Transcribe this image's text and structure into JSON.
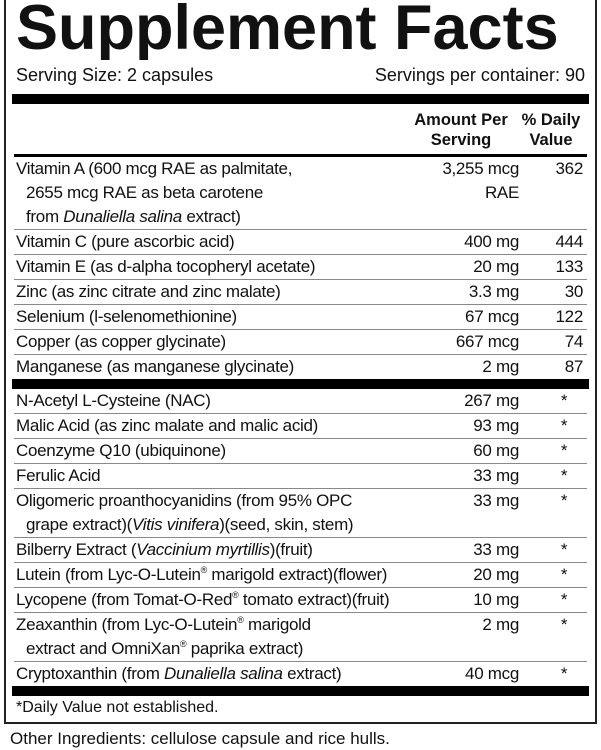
{
  "title": "Supplement Facts",
  "serving_size": "Serving Size: 2 capsules",
  "servings_per_container": "Servings per container: 90",
  "header": {
    "amount": "Amount Per Serving",
    "dv": "% Daily Value"
  },
  "section1": [
    {
      "name": [
        [
          "Vitamin A (600 mcg RAE as palmitate,",
          0
        ]
      ],
      "extra": [
        [
          [
            "2655 mcg RAE as beta carotene",
            0
          ]
        ],
        [
          [
            "from ",
            0
          ],
          [
            "Dunaliella salina",
            1
          ],
          [
            " extract)",
            0
          ]
        ]
      ],
      "amount": "3,255 mcg",
      "amount2": "RAE",
      "dv": "362"
    },
    {
      "name": [
        [
          "Vitamin C (pure ascorbic acid)",
          0
        ]
      ],
      "amount": "400 mg",
      "dv": "444"
    },
    {
      "name": [
        [
          "Vitamin E (as d-alpha tocopheryl acetate)",
          0
        ]
      ],
      "amount": "20 mg",
      "dv": "133"
    },
    {
      "name": [
        [
          "Zinc (as zinc citrate and zinc malate)",
          0
        ]
      ],
      "amount": "3.3 mg",
      "dv": "30"
    },
    {
      "name": [
        [
          "Selenium (l-selenomethionine)",
          0
        ]
      ],
      "amount": "67 mcg",
      "dv": "122"
    },
    {
      "name": [
        [
          "Copper (as copper glycinate)",
          0
        ]
      ],
      "amount": "667 mcg",
      "dv": "74"
    },
    {
      "name": [
        [
          "Manganese (as manganese glycinate)",
          0
        ]
      ],
      "amount": "2 mg",
      "dv": "87"
    }
  ],
  "section2": [
    {
      "name": [
        [
          "N-Acetyl L-Cysteine (NAC)",
          0
        ]
      ],
      "amount": "267 mg",
      "dv": "*"
    },
    {
      "name": [
        [
          "Malic Acid (as zinc malate and malic acid)",
          0
        ]
      ],
      "amount": "93 mg",
      "dv": "*"
    },
    {
      "name": [
        [
          "Coenzyme Q10 (ubiquinone)",
          0
        ]
      ],
      "amount": "60 mg",
      "dv": "*"
    },
    {
      "name": [
        [
          "Ferulic Acid",
          0
        ]
      ],
      "amount": "33 mg",
      "dv": "*"
    },
    {
      "name": [
        [
          "Oligomeric proanthocyanidins (from 95% OPC",
          0
        ]
      ],
      "extra": [
        [
          [
            "grape extract)(",
            0
          ],
          [
            "Vitis vinifera",
            1
          ],
          [
            ")(seed, skin, stem)",
            0
          ]
        ]
      ],
      "amount": "33 mg",
      "dv": "*"
    },
    {
      "name": [
        [
          "Bilberry Extract (",
          0
        ],
        [
          "Vaccinium myrtillis",
          1
        ],
        [
          ")(fruit)",
          0
        ]
      ],
      "amount": "33 mg",
      "dv": "*"
    },
    {
      "name": [
        [
          "Lutein (from Lyc-O-Lutein",
          0
        ],
        [
          "®",
          2
        ],
        [
          " marigold extract)(flower)",
          0
        ]
      ],
      "amount": "20 mg",
      "dv": "*"
    },
    {
      "name": [
        [
          "Lycopene (from Tomat-O-Red",
          0
        ],
        [
          "®",
          2
        ],
        [
          " tomato extract)(fruit)",
          0
        ]
      ],
      "amount": "10 mg",
      "dv": "*"
    },
    {
      "name": [
        [
          "Zeaxanthin (from Lyc-O-Lutein",
          0
        ],
        [
          "®",
          2
        ],
        [
          " marigold",
          0
        ]
      ],
      "extra": [
        [
          [
            "extract and OmniXan",
            0
          ],
          [
            "®",
            2
          ],
          [
            " paprika extract)",
            0
          ]
        ]
      ],
      "amount": "2 mg",
      "dv": "*"
    },
    {
      "name": [
        [
          "Cryptoxanthin (from ",
          0
        ],
        [
          "Dunaliella salina",
          1
        ],
        [
          " extract)",
          0
        ]
      ],
      "amount": "40 mcg",
      "dv": "*"
    }
  ],
  "footnote": "*Daily Value not established.",
  "other_ingredients": "Other Ingredients: cellulose capsule and rice hulls."
}
